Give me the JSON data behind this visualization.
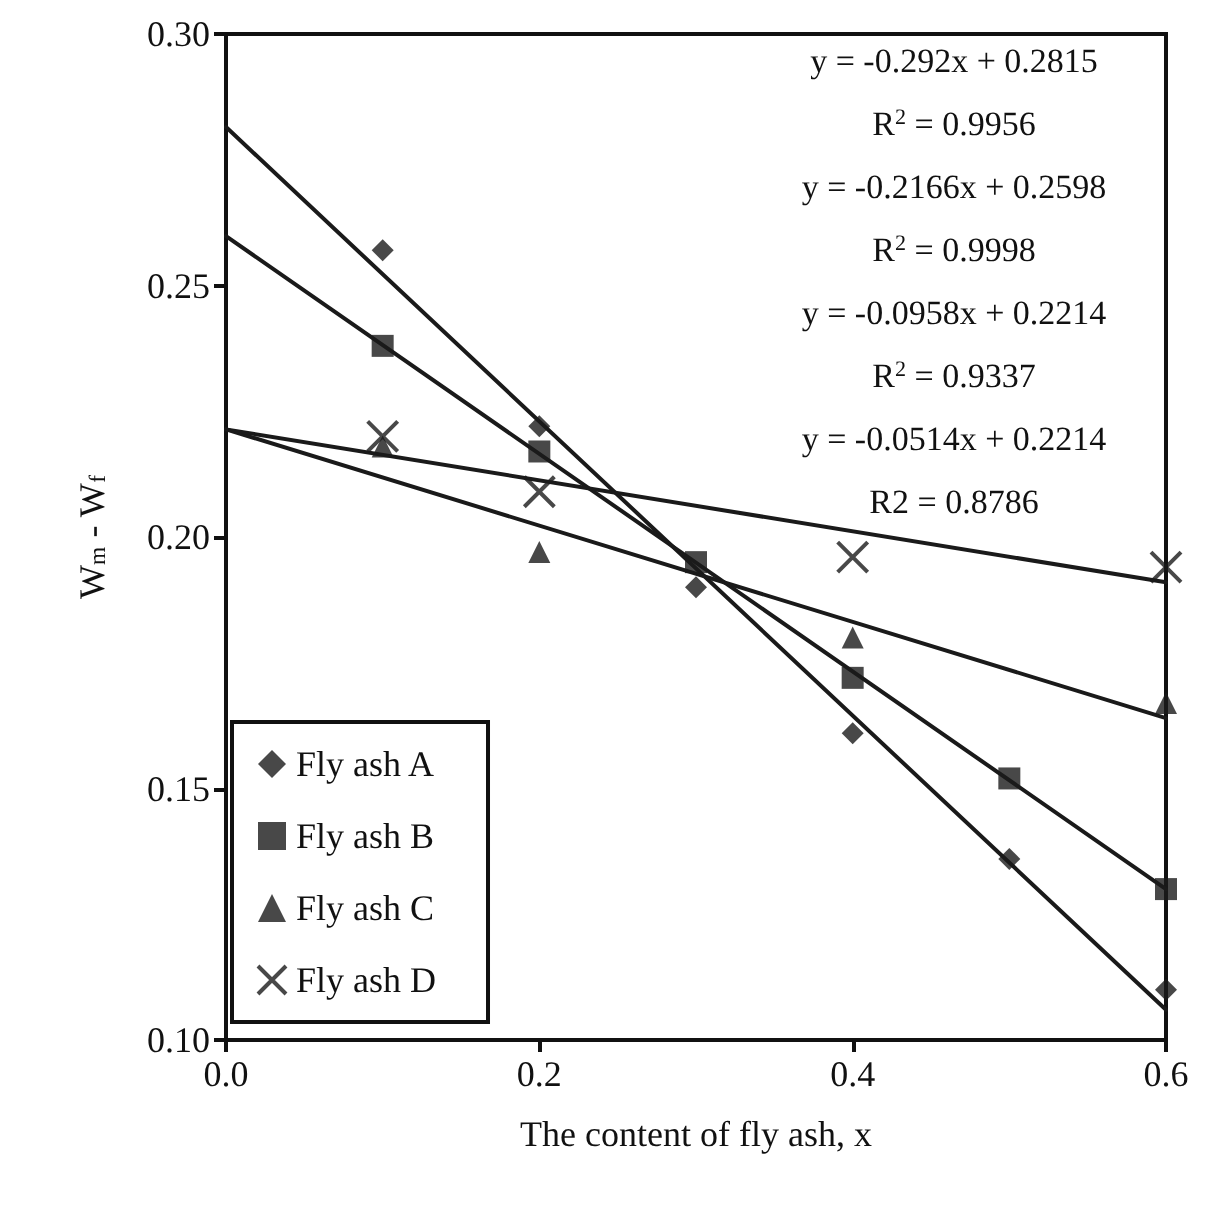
{
  "chart_data": {
    "type": "scatter",
    "xlabel": "The content of fly ash, x",
    "ylabel": "W$_{m}$ - W$_{f}$",
    "xlim": [
      0,
      0.6
    ],
    "xticks": [
      {
        "value": 0,
        "label": "0.0"
      },
      {
        "value": 0.2,
        "label": "0.2"
      },
      {
        "value": 0.4,
        "label": "0.4"
      },
      {
        "value": 0.6,
        "label": "0.6"
      }
    ],
    "ylim": [
      0.1,
      0.3
    ],
    "yticks": [
      {
        "value": 0.1,
        "label": "0.10"
      },
      {
        "value": 0.15,
        "label": "0.15"
      },
      {
        "value": 0.2,
        "label": "0.20"
      },
      {
        "value": 0.25,
        "label": "0.25"
      },
      {
        "value": 0.3,
        "label": "0.30"
      }
    ],
    "grid": false,
    "legend": "bottom left",
    "annotations": [
      "y = -0.292x + 0.2815",
      "R$^{2}$ = 0.9956",
      "y = -0.2166x + 0.2598",
      "R$^{2}$ = 0.9998",
      "y = -0.0958x + 0.2214",
      "R$^{2}$ = 0.9337",
      "y = -0.0514x + 0.2214",
      "R2 = 0.8786"
    ],
    "series": [
      {
        "name": "Fly ash A",
        "color": "#1a1a1a",
        "marker": "diamond",
        "x": [
          0.1,
          0.2,
          0.3,
          0.4,
          0.5,
          0.6
        ],
        "values": [
          0.257,
          0.222,
          0.19,
          0.161,
          0.136,
          0.11
        ]
      },
      {
        "name": "Fly ash B",
        "color": "#1a1a1a",
        "marker": "square",
        "x": [
          0.1,
          0.2,
          0.3,
          0.4,
          0.5,
          0.6
        ],
        "values": [
          0.238,
          0.217,
          0.195,
          0.172,
          0.152,
          0.13
        ]
      },
      {
        "name": "Fly ash C",
        "color": "#1a1a1a",
        "marker": "triangle",
        "x": [
          0.1,
          0.2,
          0.4,
          0.6
        ],
        "values": [
          0.218,
          0.197,
          0.18,
          0.167
        ]
      },
      {
        "name": "Fly ash D",
        "color": "#1a1a1a",
        "marker": "cross",
        "x": [
          0.1,
          0.2,
          0.4,
          0.6
        ],
        "values": [
          0.22,
          0.209,
          0.196,
          0.194
        ]
      },
      {
        "type": "line",
        "color": "#1a1a1a",
        "marker": "none",
        "x": [
          0,
          0.6
        ],
        "values": [
          0.2815,
          0.106
        ]
      },
      {
        "type": "line",
        "color": "#1a1a1a",
        "marker": "none",
        "x": [
          0,
          0.6
        ],
        "values": [
          0.2598,
          0.13
        ]
      },
      {
        "type": "line",
        "color": "#1a1a1a",
        "marker": "none",
        "x": [
          0,
          0.6
        ],
        "values": [
          0.2214,
          0.164
        ]
      },
      {
        "type": "line",
        "color": "#1a1a1a",
        "marker": "none",
        "x": [
          0,
          0.6
        ],
        "values": [
          0.2214,
          0.191
        ]
      }
    ]
  }
}
